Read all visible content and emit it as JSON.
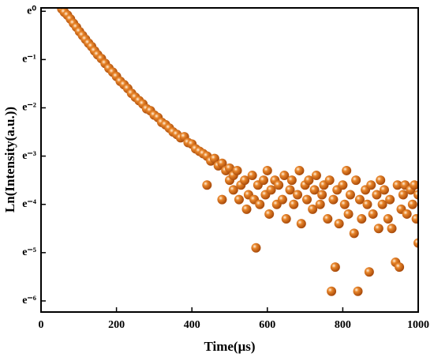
{
  "chart_data": {
    "type": "scatter",
    "x_label": "Time(μs)",
    "y_label": "Ln(Intensity(a.u.))",
    "color": "#e8852a",
    "xlim": [
      0,
      1000
    ],
    "xticks": [
      0,
      200,
      400,
      600,
      800,
      1000
    ],
    "ylim": [
      -6.23,
      0.07
    ],
    "yticks": [
      {
        "value": 0,
        "label": "e⁰"
      },
      {
        "value": -1,
        "label": "e⁻¹"
      },
      {
        "value": -2,
        "label": "e⁻²"
      },
      {
        "value": -3,
        "label": "e⁻³"
      },
      {
        "value": -4,
        "label": "e⁻⁴"
      },
      {
        "value": -5,
        "label": "e⁻⁵"
      },
      {
        "value": -6,
        "label": "e⁻⁶"
      }
    ],
    "series": [
      {
        "x": [
          55,
          62,
          70,
          78,
          86,
          94,
          102,
          110,
          118,
          126,
          134,
          142,
          150,
          160,
          170,
          180,
          190,
          200,
          210,
          220,
          230,
          240,
          250,
          260,
          270,
          280,
          290,
          300,
          310,
          320,
          330,
          340,
          350,
          360,
          370,
          380,
          390,
          400,
          410,
          420,
          430,
          440,
          450,
          460,
          470,
          480,
          490,
          500,
          440,
          480,
          500,
          510,
          510,
          520,
          525,
          530,
          540,
          545,
          550,
          560,
          565,
          570,
          575,
          580,
          590,
          595,
          600,
          605,
          610,
          620,
          625,
          630,
          640,
          645,
          650,
          660,
          665,
          670,
          680,
          685,
          690,
          700,
          705,
          710,
          720,
          725,
          730,
          740,
          745,
          750,
          760,
          765,
          770,
          775,
          780,
          785,
          790,
          800,
          805,
          810,
          815,
          820,
          830,
          835,
          840,
          845,
          850,
          860,
          865,
          870,
          875,
          880,
          890,
          895,
          900,
          905,
          910,
          920,
          925,
          930,
          940,
          945,
          950,
          955,
          960,
          965,
          970,
          980,
          985,
          990,
          995,
          1000,
          1000
        ],
        "values": [
          0.05,
          -0.02,
          -0.08,
          -0.16,
          -0.25,
          -0.33,
          -0.42,
          -0.5,
          -0.58,
          -0.66,
          -0.73,
          -0.82,
          -0.9,
          -0.98,
          -1.08,
          -1.18,
          -1.26,
          -1.35,
          -1.45,
          -1.52,
          -1.6,
          -1.7,
          -1.78,
          -1.85,
          -1.92,
          -2.02,
          -2.06,
          -2.15,
          -2.2,
          -2.3,
          -2.35,
          -2.42,
          -2.5,
          -2.55,
          -2.62,
          -2.6,
          -2.72,
          -2.75,
          -2.85,
          -2.9,
          -2.95,
          -3.0,
          -3.1,
          -3.05,
          -3.2,
          -3.15,
          -3.3,
          -3.25,
          -3.6,
          -3.9,
          -3.5,
          -3.4,
          -3.7,
          -3.3,
          -3.9,
          -3.6,
          -3.5,
          -4.1,
          -3.8,
          -3.4,
          -3.9,
          -4.9,
          -3.6,
          -4.0,
          -3.5,
          -3.8,
          -3.3,
          -4.2,
          -3.7,
          -3.5,
          -4.0,
          -3.6,
          -3.9,
          -3.4,
          -4.3,
          -3.7,
          -3.5,
          -4.0,
          -3.8,
          -3.3,
          -4.4,
          -3.6,
          -3.9,
          -3.5,
          -4.1,
          -3.7,
          -3.4,
          -4.0,
          -3.8,
          -3.6,
          -4.3,
          -3.5,
          -5.8,
          -3.9,
          -5.3,
          -3.7,
          -4.4,
          -3.6,
          -4.0,
          -3.3,
          -4.2,
          -3.8,
          -4.6,
          -3.5,
          -5.8,
          -3.9,
          -4.3,
          -3.7,
          -4.0,
          -5.4,
          -3.6,
          -4.2,
          -3.8,
          -4.5,
          -3.5,
          -4.0,
          -3.7,
          -4.3,
          -3.9,
          -4.5,
          -5.2,
          -3.6,
          -5.3,
          -4.1,
          -3.8,
          -3.6,
          -4.2,
          -3.7,
          -4.0,
          -3.6,
          -4.3,
          -4.8,
          -3.8
        ]
      }
    ]
  }
}
